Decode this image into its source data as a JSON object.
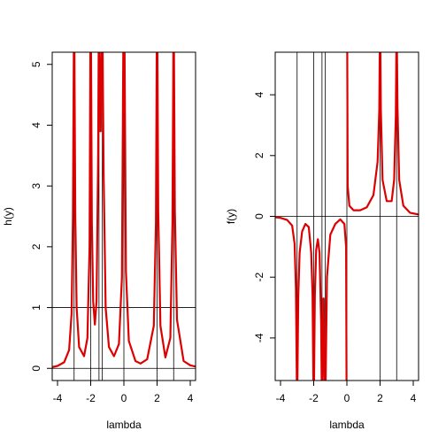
{
  "chart_data": [
    {
      "type": "line",
      "xlabel": "lambda",
      "ylabel": "h(y)",
      "xlim": [
        -4.32,
        4.32
      ],
      "ylim": [
        -0.2,
        5.2
      ],
      "xticks": [
        -4,
        -2,
        0,
        2,
        4
      ],
      "yticks": [
        0,
        1,
        2,
        3,
        4,
        5
      ],
      "grid": false,
      "legend": "none",
      "vlines": [
        -3,
        -2,
        -1.5,
        -1.3,
        0,
        2,
        3
      ],
      "hlines": [
        0,
        1
      ],
      "poles": [
        -3,
        -2,
        -1.5,
        -1.3,
        0,
        2,
        3
      ],
      "line_color": "#dd0000",
      "series": [
        {
          "x": [
            -4.32,
            -4.0,
            -3.6,
            -3.3,
            -3.15,
            -3.07,
            -3.02,
            -2.98,
            -2.93,
            -2.85,
            -2.7,
            -2.4,
            -2.2,
            -2.07,
            -2.02,
            -1.98,
            -1.93,
            -1.85,
            -1.75,
            -1.65,
            -1.55,
            -1.52,
            -1.48,
            -1.42,
            -1.4,
            -1.35,
            -1.32,
            -1.28,
            -1.22,
            -1.1,
            -0.9,
            -0.6,
            -0.3,
            -0.12,
            -0.04,
            0.04,
            0.12,
            0.3,
            0.7,
            1.0,
            1.4,
            1.8,
            1.93,
            1.98,
            2.02,
            2.07,
            2.2,
            2.5,
            2.8,
            2.93,
            2.98,
            3.02,
            3.07,
            3.2,
            3.6,
            4.0,
            4.32
          ],
          "y": [
            0.02,
            0.04,
            0.1,
            0.3,
            0.9,
            2.5,
            5.2,
            5.2,
            2.5,
            1.0,
            0.35,
            0.2,
            0.5,
            2.0,
            5.2,
            5.2,
            2.4,
            1.1,
            0.72,
            1.1,
            3.5,
            5.2,
            5.2,
            3.9,
            3.9,
            5.2,
            5.2,
            5.2,
            3.2,
            1.0,
            0.35,
            0.2,
            0.4,
            1.5,
            5.2,
            5.2,
            1.6,
            0.45,
            0.12,
            0.08,
            0.15,
            0.7,
            2.4,
            5.2,
            5.2,
            2.6,
            0.7,
            0.18,
            0.5,
            2.4,
            5.2,
            5.2,
            2.6,
            0.8,
            0.12,
            0.05,
            0.03
          ]
        }
      ]
    },
    {
      "type": "line",
      "xlabel": "lambda",
      "ylabel": "f(y)",
      "xlim": [
        -4.32,
        4.32
      ],
      "ylim": [
        -5.4,
        5.4
      ],
      "xticks": [
        -4,
        -2,
        0,
        2,
        4
      ],
      "yticks": [
        -4,
        -2,
        0,
        2,
        4
      ],
      "grid": false,
      "legend": "none",
      "vlines": [
        -3,
        -2,
        -1.5,
        -1.3,
        0,
        2,
        3
      ],
      "hlines": [
        0
      ],
      "poles": [
        -3,
        -2,
        -1.5,
        -1.3,
        0,
        2,
        3
      ],
      "line_color": "#dd0000",
      "series": [
        {
          "x": [
            -4.32,
            -4.0,
            -3.6,
            -3.3,
            -3.15,
            -3.07,
            -3.02,
            -2.98,
            -2.93,
            -2.85,
            -2.7,
            -2.5,
            -2.3,
            -2.15,
            -2.07,
            -2.02,
            -1.98,
            -1.93,
            -1.85,
            -1.75,
            -1.65,
            -1.55,
            -1.52,
            -1.48,
            -1.42,
            -1.4,
            -1.35,
            -1.32,
            -1.28,
            -1.2,
            -1.0,
            -0.7,
            -0.4,
            -0.15,
            -0.05,
            -0.02,
            0.02,
            0.05,
            0.15,
            0.4,
            0.8,
            1.2,
            1.6,
            1.85,
            1.95,
            1.98,
            2.02,
            2.05,
            2.15,
            2.4,
            2.7,
            2.85,
            2.95,
            2.98,
            3.02,
            3.05,
            3.15,
            3.4,
            3.8,
            4.32
          ],
          "y": [
            -0.03,
            -0.05,
            -0.12,
            -0.3,
            -0.9,
            -2.4,
            -5.4,
            -5.4,
            -2.6,
            -1.2,
            -0.5,
            -0.25,
            -0.35,
            -1.2,
            -2.6,
            -5.4,
            -5.4,
            -2.6,
            -1.1,
            -0.75,
            -1.2,
            -3.5,
            -5.4,
            -5.4,
            -2.7,
            -2.7,
            -5.4,
            -5.4,
            -5.4,
            -2.0,
            -0.6,
            -0.25,
            -0.1,
            -0.25,
            -1.0,
            -5.4,
            5.4,
            1.0,
            0.35,
            0.2,
            0.2,
            0.3,
            0.7,
            1.8,
            3.5,
            5.4,
            5.4,
            3.5,
            1.2,
            0.5,
            0.5,
            1.2,
            3.3,
            5.4,
            5.4,
            3.6,
            1.2,
            0.35,
            0.12,
            0.06
          ]
        }
      ]
    }
  ]
}
